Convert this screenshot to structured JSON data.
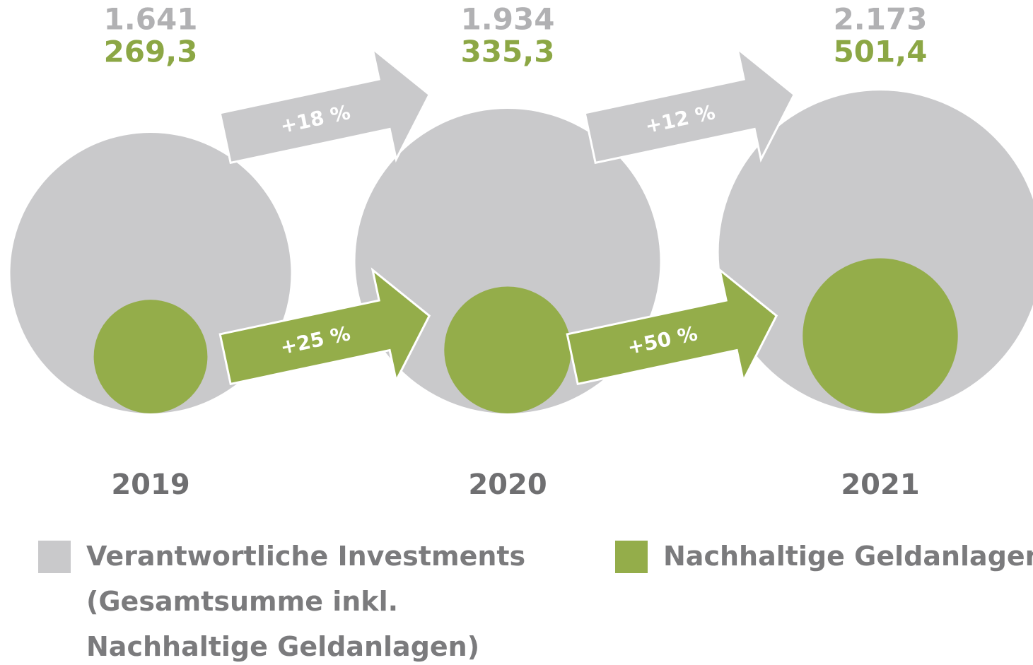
{
  "chart_data": {
    "type": "bubble",
    "categories": [
      "2019",
      "2020",
      "2021"
    ],
    "series": [
      {
        "name": "Verantwortliche Investments (Gesamtsumme inkl. Nachhaltige Geldanlagen)",
        "color": "#c9c9cb",
        "label_color": "#b1b1b3",
        "values": [
          1641,
          1934,
          2173
        ],
        "value_labels": [
          "1.641",
          "1.934",
          "2.173"
        ],
        "growth_labels": [
          "+18 %",
          "+12 %"
        ]
      },
      {
        "name": "Nachhaltige Geldanlagen",
        "color": "#94ad4a",
        "label_color": "#8ca745",
        "values": [
          269.3,
          335.3,
          501.4
        ],
        "value_labels": [
          "269,3",
          "335,3",
          "501,4"
        ],
        "growth_labels": [
          "+25 %",
          "+50 %"
        ]
      }
    ]
  }
}
